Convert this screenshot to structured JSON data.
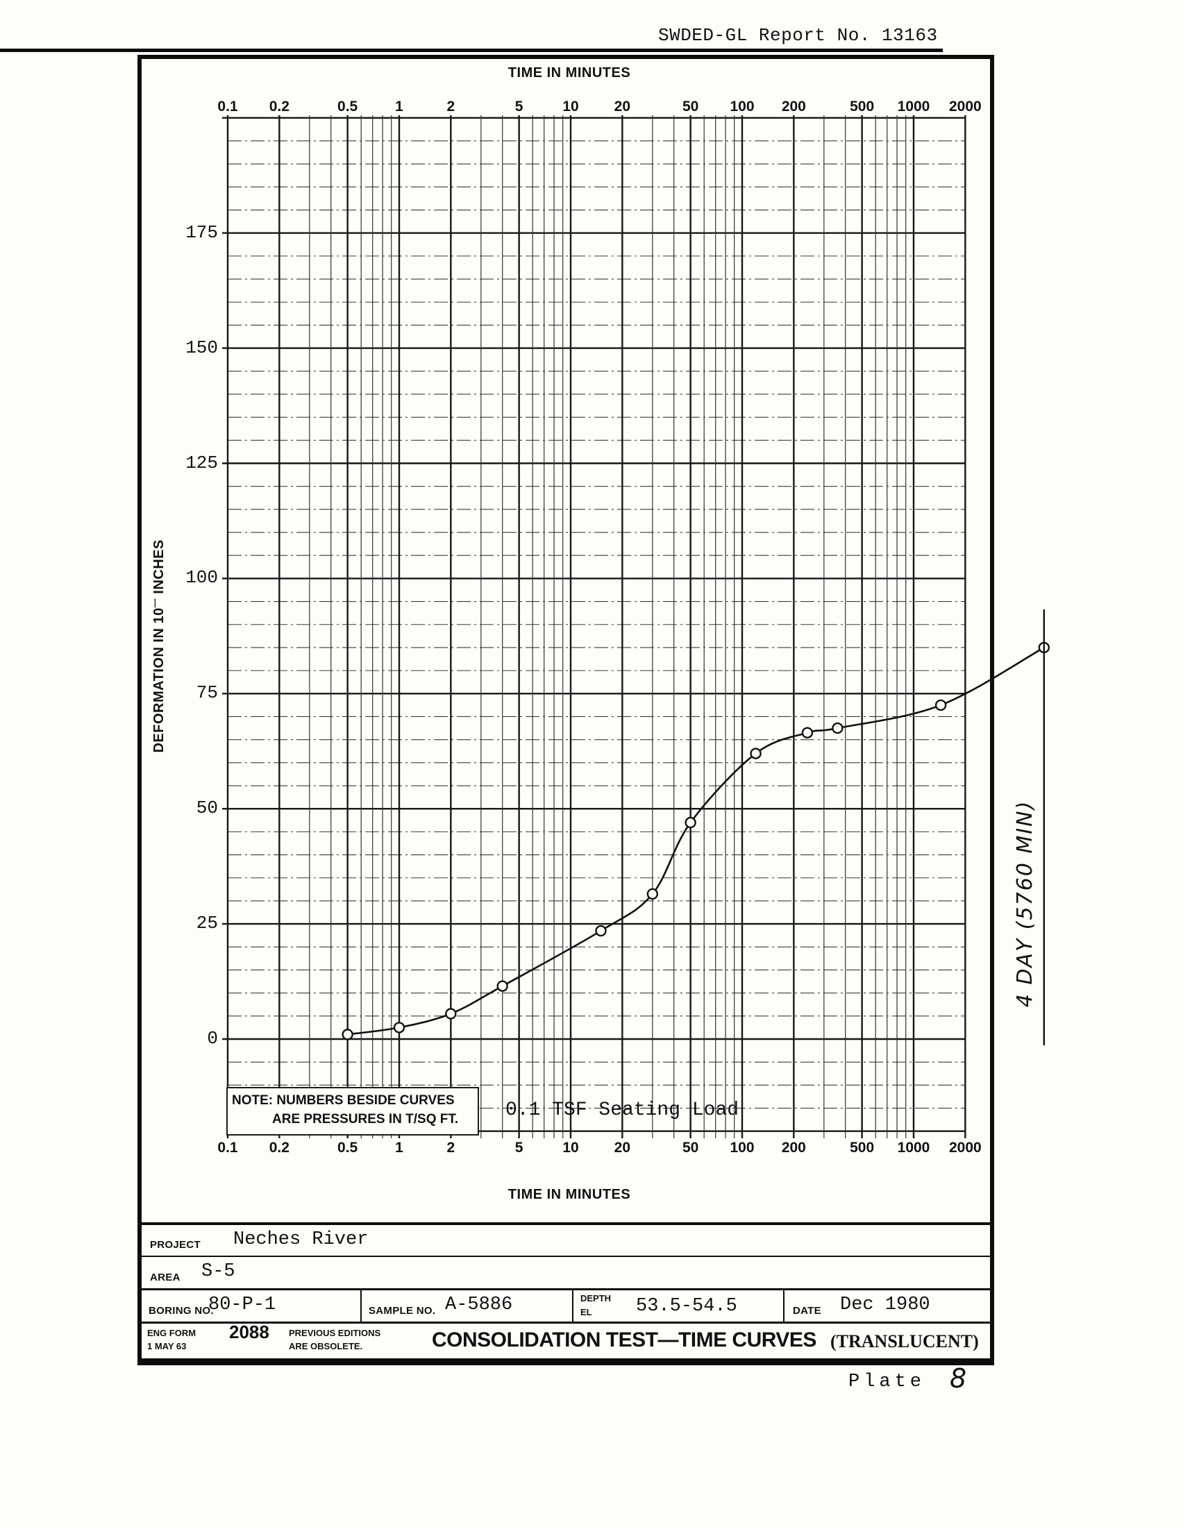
{
  "header": {
    "report": "SWDED-GL Report No. 13163"
  },
  "chart": {
    "top_axis_title": "TIME IN MINUTES",
    "bottom_axis_title": "TIME IN MINUTES",
    "y_title_prefix": "DEFORMATION IN 10",
    "y_title_sup": "—",
    "y_title_suffix": " INCHES",
    "note_line1": "NOTE: NUMBERS BESIDE CURVES",
    "note_line2": "ARE PRESSURES IN T/SQ FT.",
    "seating_label": "0.1 TSF Seating Load",
    "four_day_label": "4 DAY (5760 MIN)"
  },
  "chart_data": {
    "type": "line",
    "title": "CONSOLIDATION TEST—TIME CURVES",
    "xlabel": "TIME IN MINUTES",
    "ylabel": "DEFORMATION IN 10— INCHES",
    "x_scale": "log",
    "x_range": [
      0.1,
      2000
    ],
    "x_ticks": [
      0.1,
      0.2,
      0.5,
      1,
      2,
      5,
      10,
      20,
      50,
      100,
      200,
      500,
      1000,
      2000
    ],
    "y_range": [
      -20,
      200
    ],
    "y_ticks": [
      0,
      25,
      50,
      75,
      100,
      125,
      150,
      175
    ],
    "y_minor_step": 5,
    "grid": "on",
    "series": [
      {
        "name": "0.1 TSF Seating Load",
        "points": [
          [
            0.5,
            1
          ],
          [
            1,
            2.5
          ],
          [
            2,
            5.5
          ],
          [
            4,
            11.5
          ],
          [
            15,
            23.5
          ],
          [
            30,
            31.5
          ],
          [
            50,
            47
          ],
          [
            120,
            62
          ],
          [
            240,
            66.5
          ],
          [
            360,
            67.5
          ],
          [
            1440,
            72.5
          ],
          [
            5760,
            85
          ]
        ]
      }
    ],
    "annotation": "4 DAY (5760 MIN)",
    "annotation_x": 5760,
    "ink_color": "#111111"
  },
  "title_block": {
    "project_label": "PROJECT",
    "project": "Neches River",
    "area_label": "AREA",
    "area": "S-5",
    "boring_label": "BORING NO.",
    "boring": "80-P-1",
    "sample_label": "SAMPLE NO.",
    "sample": "A-5886",
    "depth_label_1": "DEPTH",
    "depth_label_2": "EL",
    "depth": "53.5-54.5",
    "date_label": "DATE",
    "date": "Dec 1980",
    "form_name": "ENG FORM",
    "form_date": "1 MAY 63",
    "form_number": "2088",
    "obsolete_1": "PREVIOUS EDITIONS",
    "obsolete_2": "ARE OBSOLETE.",
    "form_title": "CONSOLIDATION TEST—TIME CURVES",
    "translucent": "(TRANSLUCENT)"
  },
  "footer": {
    "plate_label": "Plate",
    "plate_number": "8"
  }
}
